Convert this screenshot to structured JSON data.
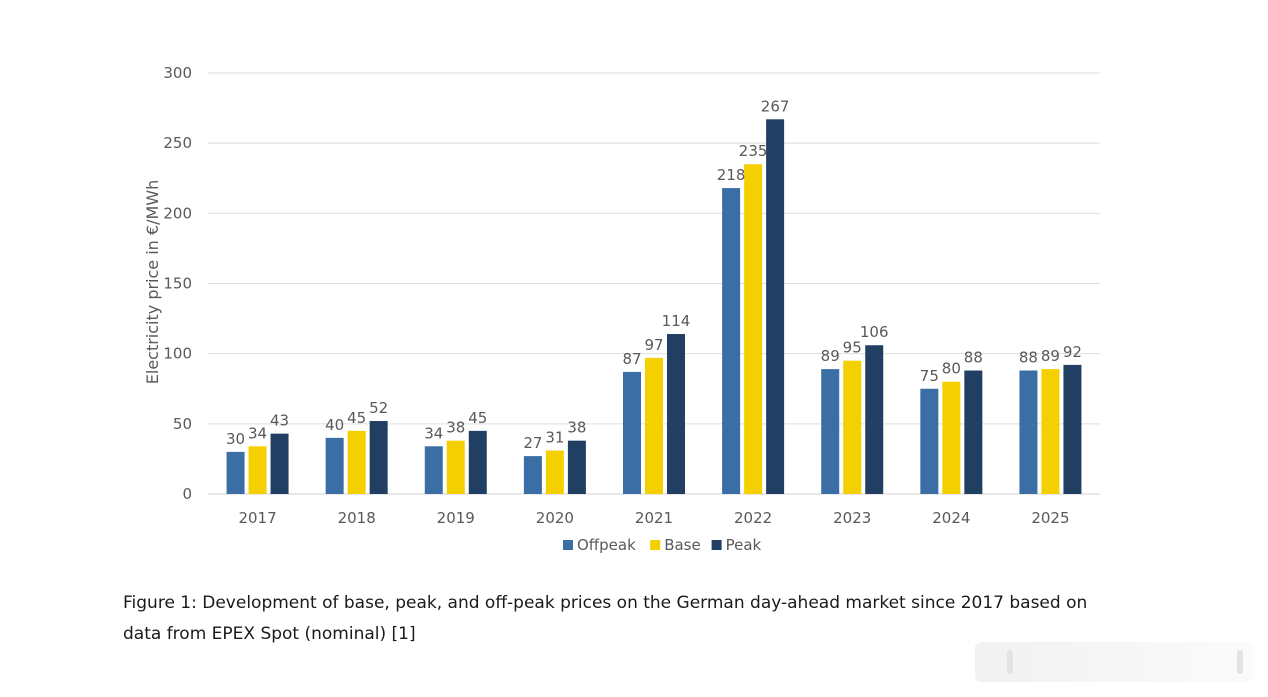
{
  "chart_data": {
    "type": "bar",
    "title": "",
    "xlabel": "",
    "ylabel": "Electricity price in €/MWh",
    "ylim": [
      0,
      300
    ],
    "yticks": [
      0,
      50,
      100,
      150,
      200,
      250,
      300
    ],
    "grid": true,
    "legend_position": "bottom",
    "categories": [
      "2017",
      "2018",
      "2019",
      "2020",
      "2021",
      "2022",
      "2023",
      "2024",
      "2025"
    ],
    "series": [
      {
        "name": "Offpeak",
        "color": "#3a6ea5",
        "values": [
          30,
          40,
          34,
          27,
          87,
          218,
          89,
          75,
          88
        ]
      },
      {
        "name": "Base",
        "color": "#f5d000",
        "values": [
          34,
          45,
          38,
          31,
          97,
          235,
          95,
          80,
          89
        ]
      },
      {
        "name": "Peak",
        "color": "#203f63",
        "values": [
          43,
          52,
          45,
          38,
          114,
          267,
          106,
          88,
          92
        ]
      }
    ]
  },
  "caption": "Figure 1: Development of base, peak, and off-peak prices on the German day-ahead market since 2017 based on data from EPEX Spot (nominal) [1]"
}
